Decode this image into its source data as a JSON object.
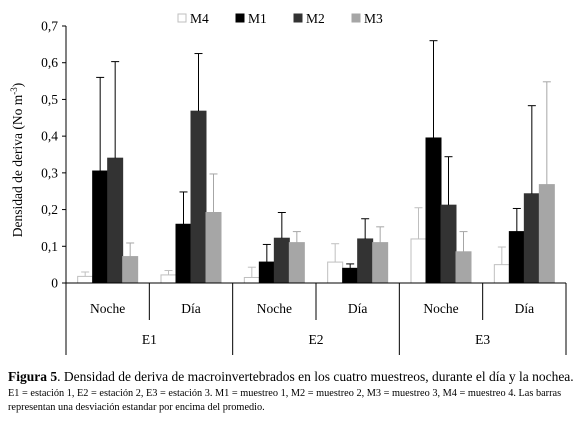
{
  "chart_data": {
    "type": "bar",
    "ylabel": "Densidad de deriva  (No m",
    "ylabel_sup": "-3",
    "ylabel_close": ")",
    "ylim": [
      0,
      0.7
    ],
    "yticks": [
      "0",
      "0,1",
      "0,2",
      "0,3",
      "0,4",
      "0,5",
      "0,6",
      "0,7"
    ],
    "grid": false,
    "legend_position": "top",
    "legend_order": [
      "M4",
      "M1",
      "M2",
      "M3"
    ],
    "groups": [
      {
        "label": "E1",
        "subcategories": [
          "Noche",
          "Día"
        ]
      },
      {
        "label": "E2",
        "subcategories": [
          "Noche",
          "Día"
        ]
      },
      {
        "label": "E3",
        "subcategories": [
          "Noche",
          "Día"
        ]
      }
    ],
    "series": [
      {
        "name": "M4",
        "color": "#ffffff",
        "stroke": "#bfbfbf",
        "values": [
          0.018,
          0.022,
          0.015,
          0.057,
          0.12,
          0.05
        ],
        "error": [
          0.012,
          0.012,
          0.028,
          0.05,
          0.085,
          0.048
        ]
      },
      {
        "name": "M1",
        "color": "#000000",
        "stroke": "#000000",
        "values": [
          0.305,
          0.16,
          0.057,
          0.04,
          0.395,
          0.14
        ],
        "error": [
          0.255,
          0.088,
          0.048,
          0.012,
          0.265,
          0.063
        ]
      },
      {
        "name": "M2",
        "color": "#333333",
        "stroke": "#333333",
        "values": [
          0.34,
          0.468,
          0.122,
          0.12,
          0.212,
          0.243
        ],
        "error": [
          0.263,
          0.157,
          0.07,
          0.055,
          0.132,
          0.24
        ]
      },
      {
        "name": "M3",
        "color": "#a6a6a6",
        "stroke": "#a6a6a6",
        "values": [
          0.072,
          0.192,
          0.11,
          0.11,
          0.085,
          0.268
        ],
        "error": [
          0.037,
          0.105,
          0.03,
          0.043,
          0.055,
          0.28
        ]
      }
    ]
  },
  "caption": {
    "figure_label": "Figura 5",
    "main_text": ". Densidad de deriva de macroinvertebrados en los cuatro muestreos, durante el día y la nochea.",
    "note": "E1 = estación 1, E2 = estación 2, E3 = estación 3. M1 = muestreo 1, M2 = muestreo 2, M3 = muestreo 3, M4 = muestreo 4. Las barras representan una desviación estandar por encima del promedio."
  }
}
